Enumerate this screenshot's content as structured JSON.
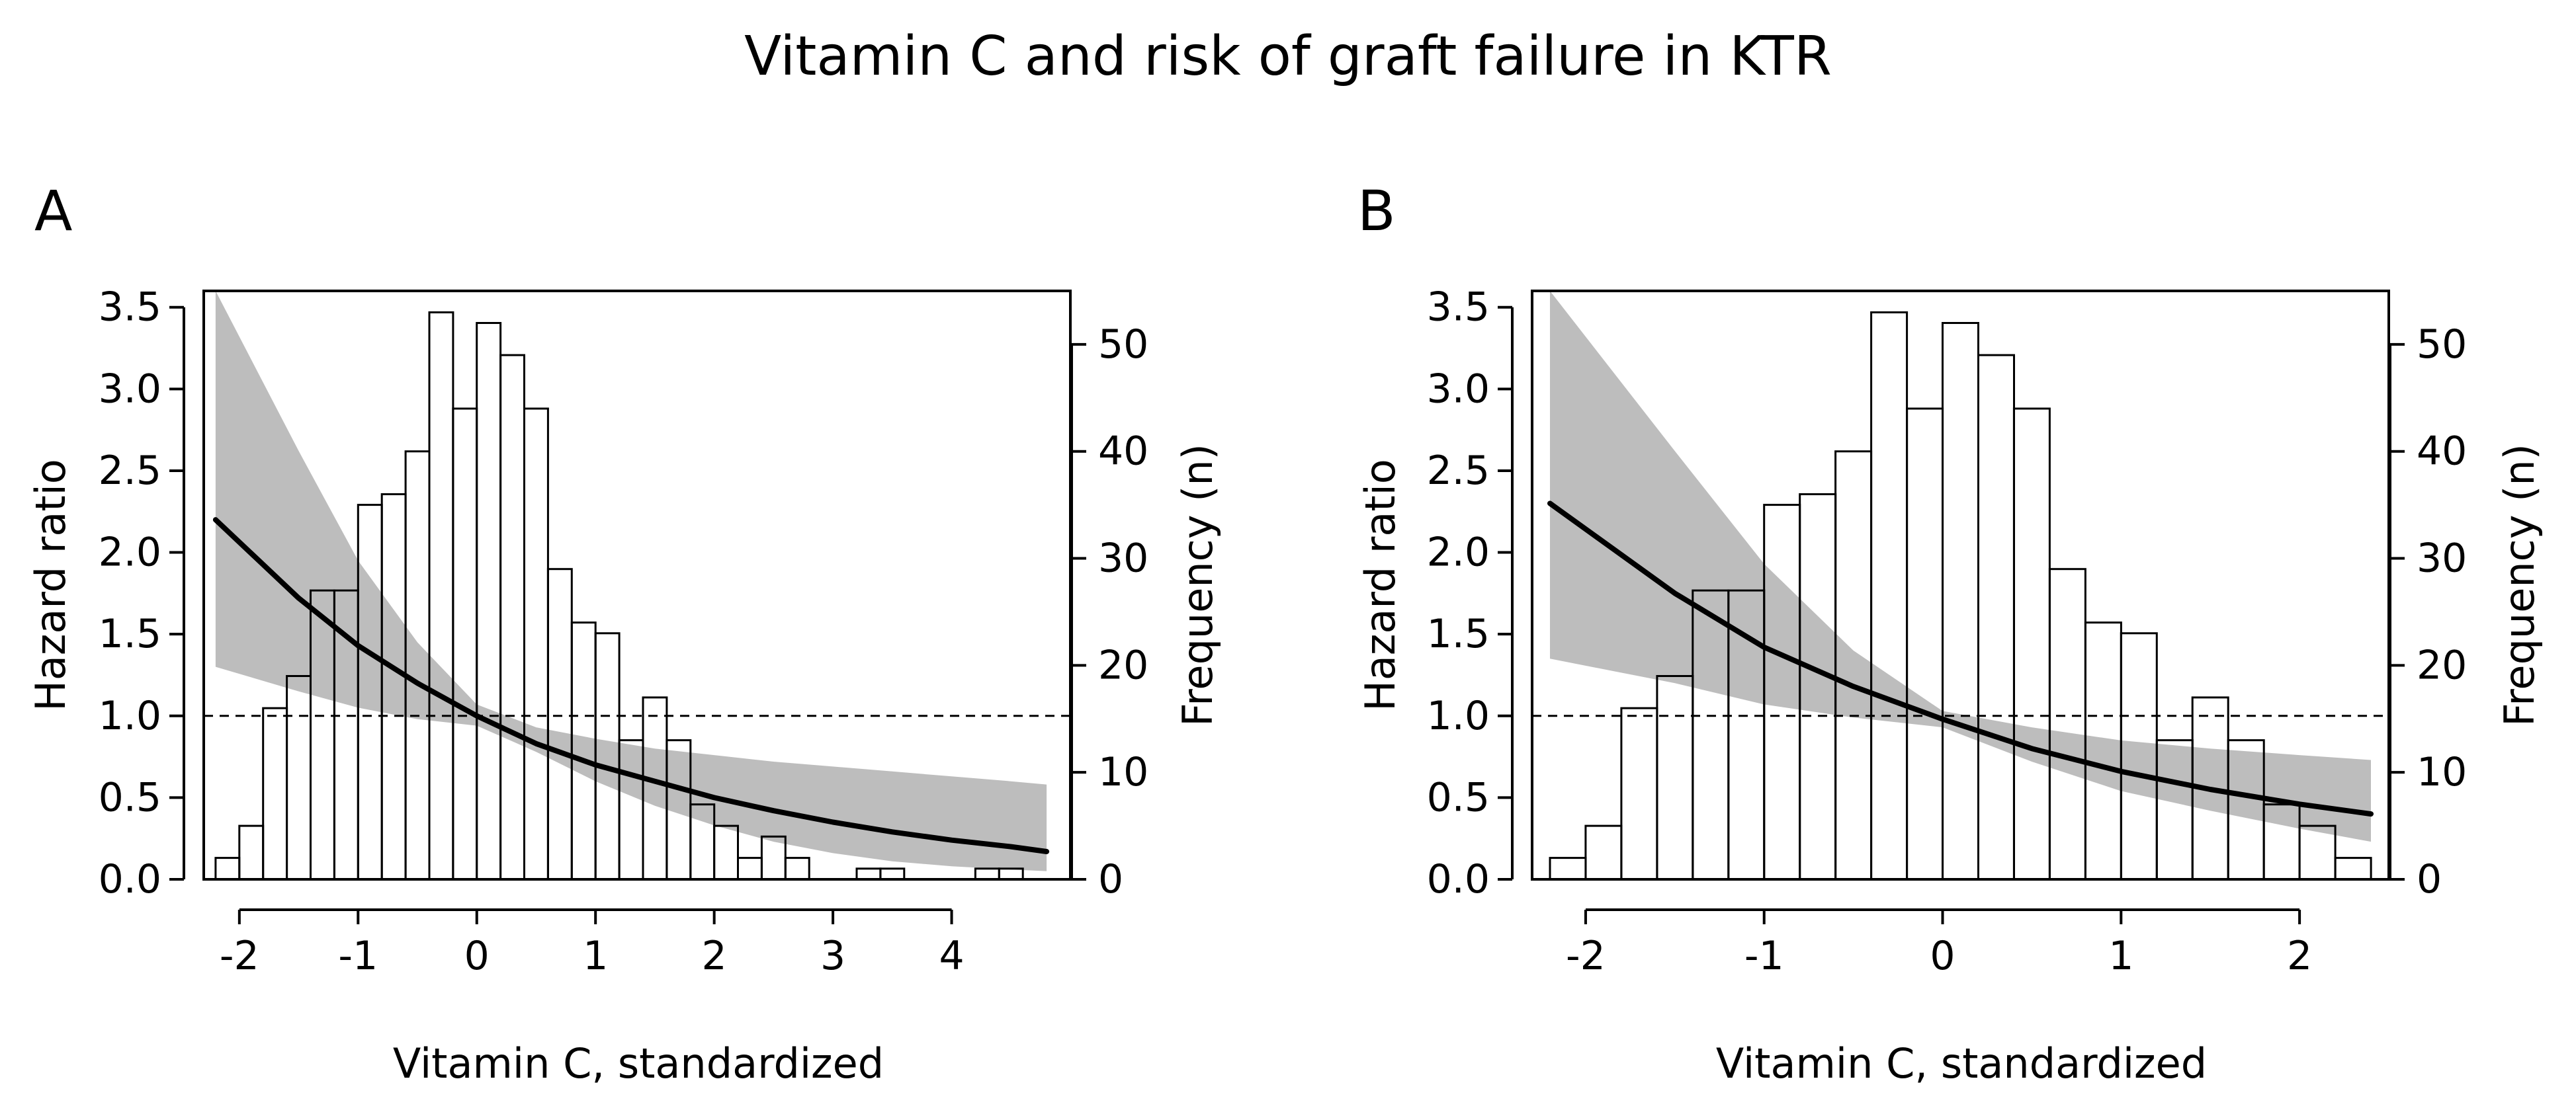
{
  "title": "Vitamin C and risk of graft failure in KTR",
  "chart_data": [
    {
      "panel": "A",
      "type": "histogram+line",
      "title": "",
      "xlabel": "Vitamin C, standardized",
      "ylabel_left": "Hazard ratio",
      "ylabel_right": "Frequency (n)",
      "xlim": [
        -2.3,
        5.0
      ],
      "ylim_left": [
        0,
        3.6
      ],
      "ylim_right": [
        0,
        55
      ],
      "x_ticks": [
        -2,
        -1,
        0,
        1,
        2,
        3,
        4
      ],
      "x_tick_labels": [
        "-2",
        "-1",
        "0",
        "1",
        "2",
        "3",
        "4"
      ],
      "y_left_ticks": [
        0.0,
        0.5,
        1.0,
        1.5,
        2.0,
        2.5,
        3.0,
        3.5
      ],
      "y_left_tick_labels": [
        "0.0",
        "0.5",
        "1.0",
        "1.5",
        "2.0",
        "2.5",
        "3.0",
        "3.5"
      ],
      "y_right_ticks": [
        0,
        10,
        20,
        30,
        40,
        50
      ],
      "y_right_tick_labels": [
        "0",
        "10",
        "20",
        "30",
        "40",
        "50"
      ],
      "reference_line": 1.0,
      "histogram": {
        "bin_edges": [
          -2.2,
          -2.0,
          -1.8,
          -1.6,
          -1.4,
          -1.2,
          -1.0,
          -0.8,
          -0.6,
          -0.4,
          -0.2,
          0.0,
          0.2,
          0.4,
          0.6,
          0.8,
          1.0,
          1.2,
          1.4,
          1.6,
          1.8,
          2.0,
          2.2,
          2.4,
          2.6,
          2.8,
          3.0,
          3.2,
          3.4,
          3.6,
          3.8,
          4.0,
          4.2,
          4.4,
          4.6,
          4.8
        ],
        "counts": [
          2,
          5,
          16,
          19,
          27,
          27,
          35,
          36,
          40,
          53,
          44,
          52,
          49,
          44,
          29,
          24,
          23,
          13,
          17,
          13,
          7,
          5,
          2,
          4,
          2,
          0,
          0,
          1,
          1,
          0,
          0,
          0,
          1,
          1,
          0
        ]
      },
      "hazard_ratio": {
        "x": [
          -2.2,
          -1.5,
          -1.0,
          -0.5,
          0.0,
          0.5,
          1.0,
          1.5,
          2.0,
          2.5,
          3.0,
          3.5,
          4.0,
          4.5,
          4.8
        ],
        "hr": [
          2.2,
          1.72,
          1.43,
          1.2,
          1.0,
          0.83,
          0.7,
          0.6,
          0.5,
          0.42,
          0.35,
          0.29,
          0.24,
          0.2,
          0.17
        ],
        "ci_lower": [
          1.3,
          1.15,
          1.05,
          0.98,
          0.94,
          0.78,
          0.6,
          0.45,
          0.33,
          0.23,
          0.16,
          0.11,
          0.08,
          0.06,
          0.05
        ],
        "ci_upper": [
          3.65,
          2.62,
          1.95,
          1.45,
          1.07,
          0.93,
          0.86,
          0.8,
          0.76,
          0.72,
          0.69,
          0.66,
          0.63,
          0.6,
          0.58
        ]
      }
    },
    {
      "panel": "B",
      "type": "histogram+line",
      "title": "",
      "xlabel": "Vitamin C, standardized",
      "ylabel_left": "Hazard ratio",
      "ylabel_right": "Frequency (n)",
      "xlim": [
        -2.3,
        2.5
      ],
      "ylim_left": [
        0,
        3.6
      ],
      "ylim_right": [
        0,
        55
      ],
      "x_ticks": [
        -2,
        -1,
        0,
        1,
        2
      ],
      "x_tick_labels": [
        "-2",
        "-1",
        "0",
        "1",
        "2"
      ],
      "y_left_ticks": [
        0.0,
        0.5,
        1.0,
        1.5,
        2.0,
        2.5,
        3.0,
        3.5
      ],
      "y_left_tick_labels": [
        "0.0",
        "0.5",
        "1.0",
        "1.5",
        "2.0",
        "2.5",
        "3.0",
        "3.5"
      ],
      "y_right_ticks": [
        0,
        10,
        20,
        30,
        40,
        50
      ],
      "y_right_tick_labels": [
        "0",
        "10",
        "20",
        "30",
        "40",
        "50"
      ],
      "reference_line": 1.0,
      "histogram": {
        "bin_edges": [
          -2.2,
          -2.0,
          -1.8,
          -1.6,
          -1.4,
          -1.2,
          -1.0,
          -0.8,
          -0.6,
          -0.4,
          -0.2,
          0.0,
          0.2,
          0.4,
          0.6,
          0.8,
          1.0,
          1.2,
          1.4,
          1.6,
          1.8,
          2.0,
          2.2,
          2.4
        ],
        "counts": [
          2,
          5,
          16,
          19,
          27,
          27,
          35,
          36,
          40,
          53,
          44,
          52,
          49,
          44,
          29,
          24,
          23,
          13,
          17,
          13,
          7,
          5,
          2
        ]
      },
      "hazard_ratio": {
        "x": [
          -2.2,
          -1.5,
          -1.0,
          -0.5,
          0.0,
          0.5,
          1.0,
          1.5,
          2.0,
          2.4
        ],
        "hr": [
          2.3,
          1.75,
          1.42,
          1.18,
          0.98,
          0.8,
          0.66,
          0.55,
          0.46,
          0.4
        ],
        "ci_lower": [
          1.35,
          1.2,
          1.07,
          0.99,
          0.93,
          0.72,
          0.54,
          0.42,
          0.31,
          0.23
        ],
        "ci_upper": [
          3.65,
          2.62,
          1.93,
          1.4,
          1.03,
          0.93,
          0.85,
          0.8,
          0.76,
          0.73
        ]
      }
    }
  ]
}
